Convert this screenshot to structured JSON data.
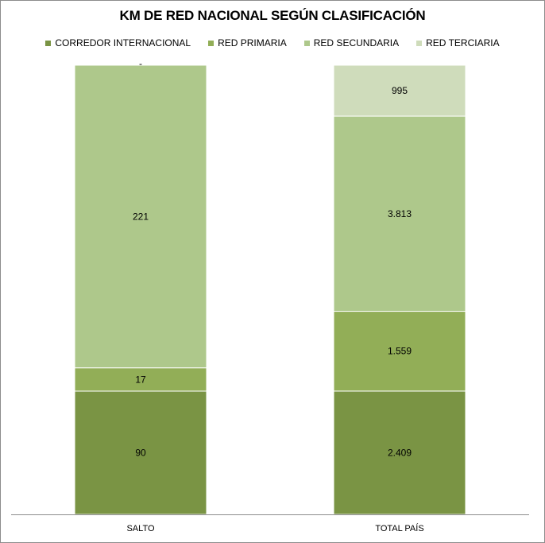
{
  "chart_data": {
    "type": "bar",
    "stacked": true,
    "normalized_100_percent": true,
    "title": "KM DE RED NACIONAL SEGÚN CLASIFICACIÓN",
    "categories": [
      "SALTO",
      "TOTAL PAÍS"
    ],
    "series": [
      {
        "name": "CORREDOR INTERNACIONAL",
        "color": "#7a9444",
        "values": [
          90,
          2409
        ],
        "labels": [
          "90",
          "2.409"
        ]
      },
      {
        "name": "RED PRIMARIA",
        "color": "#92ae57",
        "values": [
          17,
          1559
        ],
        "labels": [
          "17",
          "1.559"
        ]
      },
      {
        "name": "RED SECUNDARIA",
        "color": "#aec88b",
        "values": [
          221,
          3813
        ],
        "labels": [
          "221",
          "3.813"
        ]
      },
      {
        "name": "RED TERCIARIA",
        "color": "#cfdcbb",
        "values": [
          0,
          995
        ],
        "labels": [
          "-",
          "995"
        ]
      }
    ],
    "legend_position": "top",
    "grid": false
  }
}
